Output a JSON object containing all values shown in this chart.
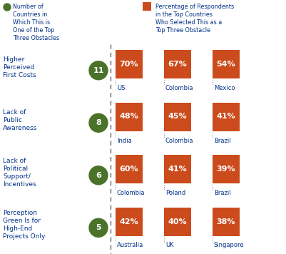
{
  "legend_text_left": [
    "Number of",
    "Countries in",
    "Which This is",
    "One of the Top",
    "Three Obstacles"
  ],
  "legend_text_right": [
    "Percentage of Respondents",
    "in the Top Countries",
    "Who Selected This as a",
    "Top Three Obstacle"
  ],
  "rows": [
    {
      "label": "Higher\nPerceived\nFirst Costs",
      "number": 11,
      "bars": [
        {
          "pct": 70,
          "country": "US"
        },
        {
          "pct": 67,
          "country": "Colombia"
        },
        {
          "pct": 54,
          "country": "Mexico"
        }
      ]
    },
    {
      "label": "Lack of\nPublic\nAwareness",
      "number": 8,
      "bars": [
        {
          "pct": 48,
          "country": "India"
        },
        {
          "pct": 45,
          "country": "Colombia"
        },
        {
          "pct": 41,
          "country": "Brazil"
        }
      ]
    },
    {
      "label": "Lack of\nPolitical\nSupport/\nIncentives",
      "number": 6,
      "bars": [
        {
          "pct": 60,
          "country": "Colombia"
        },
        {
          "pct": 41,
          "country": "Poland"
        },
        {
          "pct": 39,
          "country": "Brazil"
        }
      ]
    },
    {
      "label": "Perception\nGreen Is for\nHigh-End\nProjects Only",
      "number": 5,
      "bars": [
        {
          "pct": 42,
          "country": "Australia"
        },
        {
          "pct": 40,
          "country": "UK"
        },
        {
          "pct": 38,
          "country": "Singapore"
        }
      ]
    }
  ],
  "bar_color": "#CC4B1C",
  "circle_color": "#4A7229",
  "label_color": "#003087",
  "text_color": "#003087",
  "bg_color": "#FFFFFF"
}
